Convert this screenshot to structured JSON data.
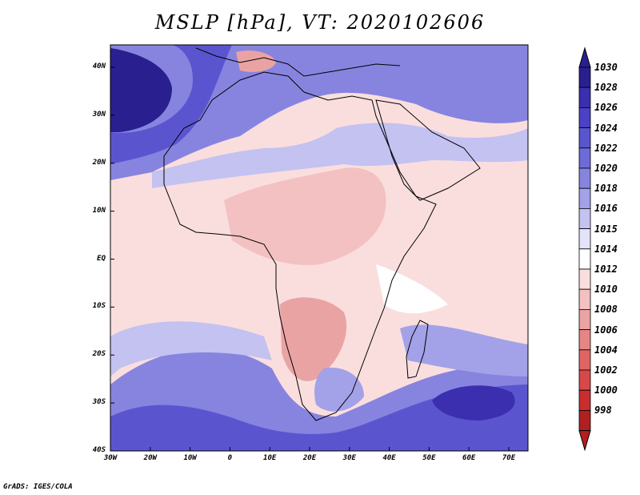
{
  "title": "MSLP [hPa], VT: 2020102606",
  "lat_labels": [
    "40N",
    "30N",
    "20N",
    "10N",
    "EQ",
    "10S",
    "20S",
    "30S",
    "40S"
  ],
  "lon_labels": [
    "30W",
    "20W",
    "10W",
    "0",
    "10E",
    "20E",
    "30E",
    "40E",
    "50E",
    "60E",
    "70E"
  ],
  "colorbar": {
    "levels": [
      "1030",
      "1028",
      "1026",
      "1024",
      "1022",
      "1020",
      "1018",
      "1016",
      "1015",
      "1014",
      "1012",
      "1010",
      "1008",
      "1006",
      "1004",
      "1002",
      "1000",
      "998"
    ],
    "colors": [
      "#2a1f8f",
      "#3b2fb0",
      "#4a41c4",
      "#5a55cf",
      "#6d6bd8",
      "#8784e0",
      "#a3a1e8",
      "#c3c2f1",
      "#e3e3fa",
      "#ffffff",
      "#fadede",
      "#f3c1c1",
      "#eaa3a3",
      "#e58585",
      "#df6565",
      "#d84848",
      "#c92e2e",
      "#b02020"
    ]
  },
  "footer": "GrADS: IGES/COLA"
}
